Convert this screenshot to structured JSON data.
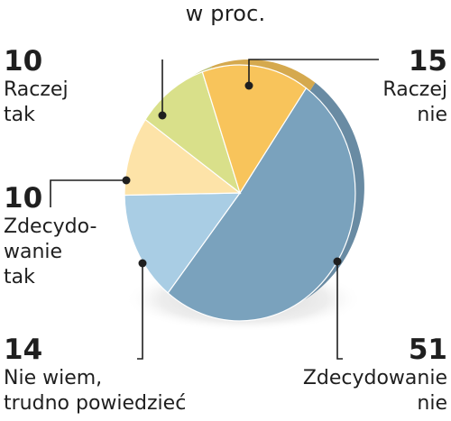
{
  "chart_data": {
    "type": "pie",
    "subtitle": "w proc.",
    "slices": [
      {
        "value": 51,
        "label_lines": [
          "Zdecydowanie",
          "nie"
        ],
        "color": "#7aa2bd"
      },
      {
        "value": 14,
        "label_lines": [
          "Nie wiem,",
          "trudno powiedzieć"
        ],
        "color": "#a9cde4"
      },
      {
        "value": 10,
        "label_lines": [
          "Zdecydo-",
          "wanie",
          "tak"
        ],
        "color": "#fde3a8"
      },
      {
        "value": 10,
        "label_lines": [
          "Raczej",
          "tak"
        ],
        "color": "#d9e08a"
      },
      {
        "value": 15,
        "label_lines": [
          "Raczej",
          "nie"
        ],
        "color": "#f8c45b"
      }
    ]
  }
}
